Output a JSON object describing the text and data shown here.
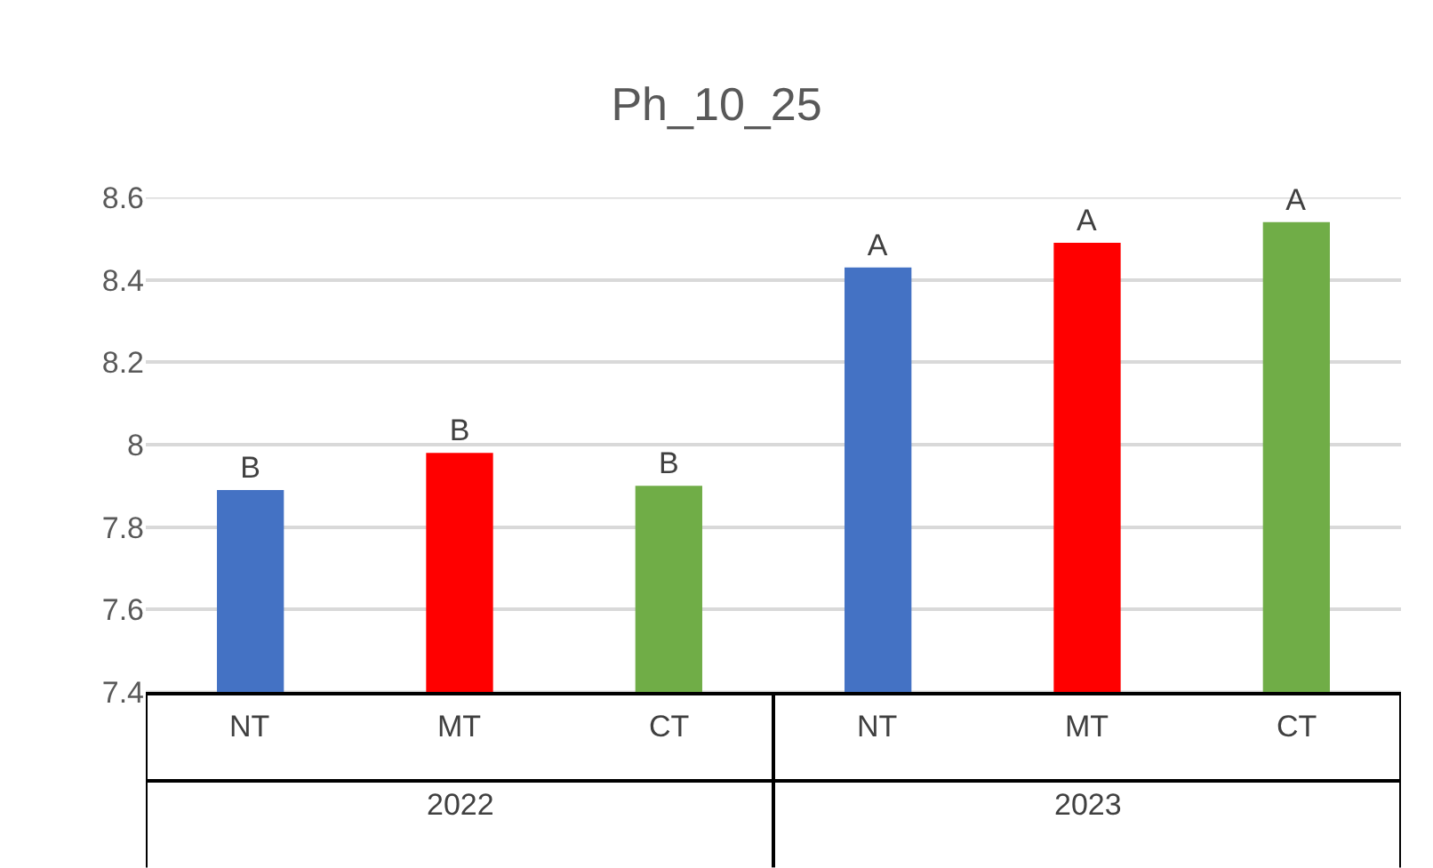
{
  "chart_data": {
    "type": "bar",
    "title": "Ph_10_25",
    "categories": [
      "NT",
      "MT",
      "CT",
      "NT",
      "MT",
      "CT"
    ],
    "values": [
      7.89,
      7.98,
      7.9,
      8.43,
      8.49,
      8.54
    ],
    "colors": [
      "#4472c4",
      "#ff0000",
      "#70ad47",
      "#4472c4",
      "#ff0000",
      "#70ad47"
    ],
    "value_labels": [
      "B",
      "B",
      "B",
      "A",
      "A",
      "A"
    ],
    "annotations": [
      "2022",
      "2023"
    ],
    "ylim": [
      7.4,
      8.6
    ],
    "yticks": [
      7.4,
      7.6,
      7.8,
      {
        "value": 8,
        "label": "8"
      },
      8.2,
      8.4,
      8.6
    ],
    "grid": "y"
  }
}
